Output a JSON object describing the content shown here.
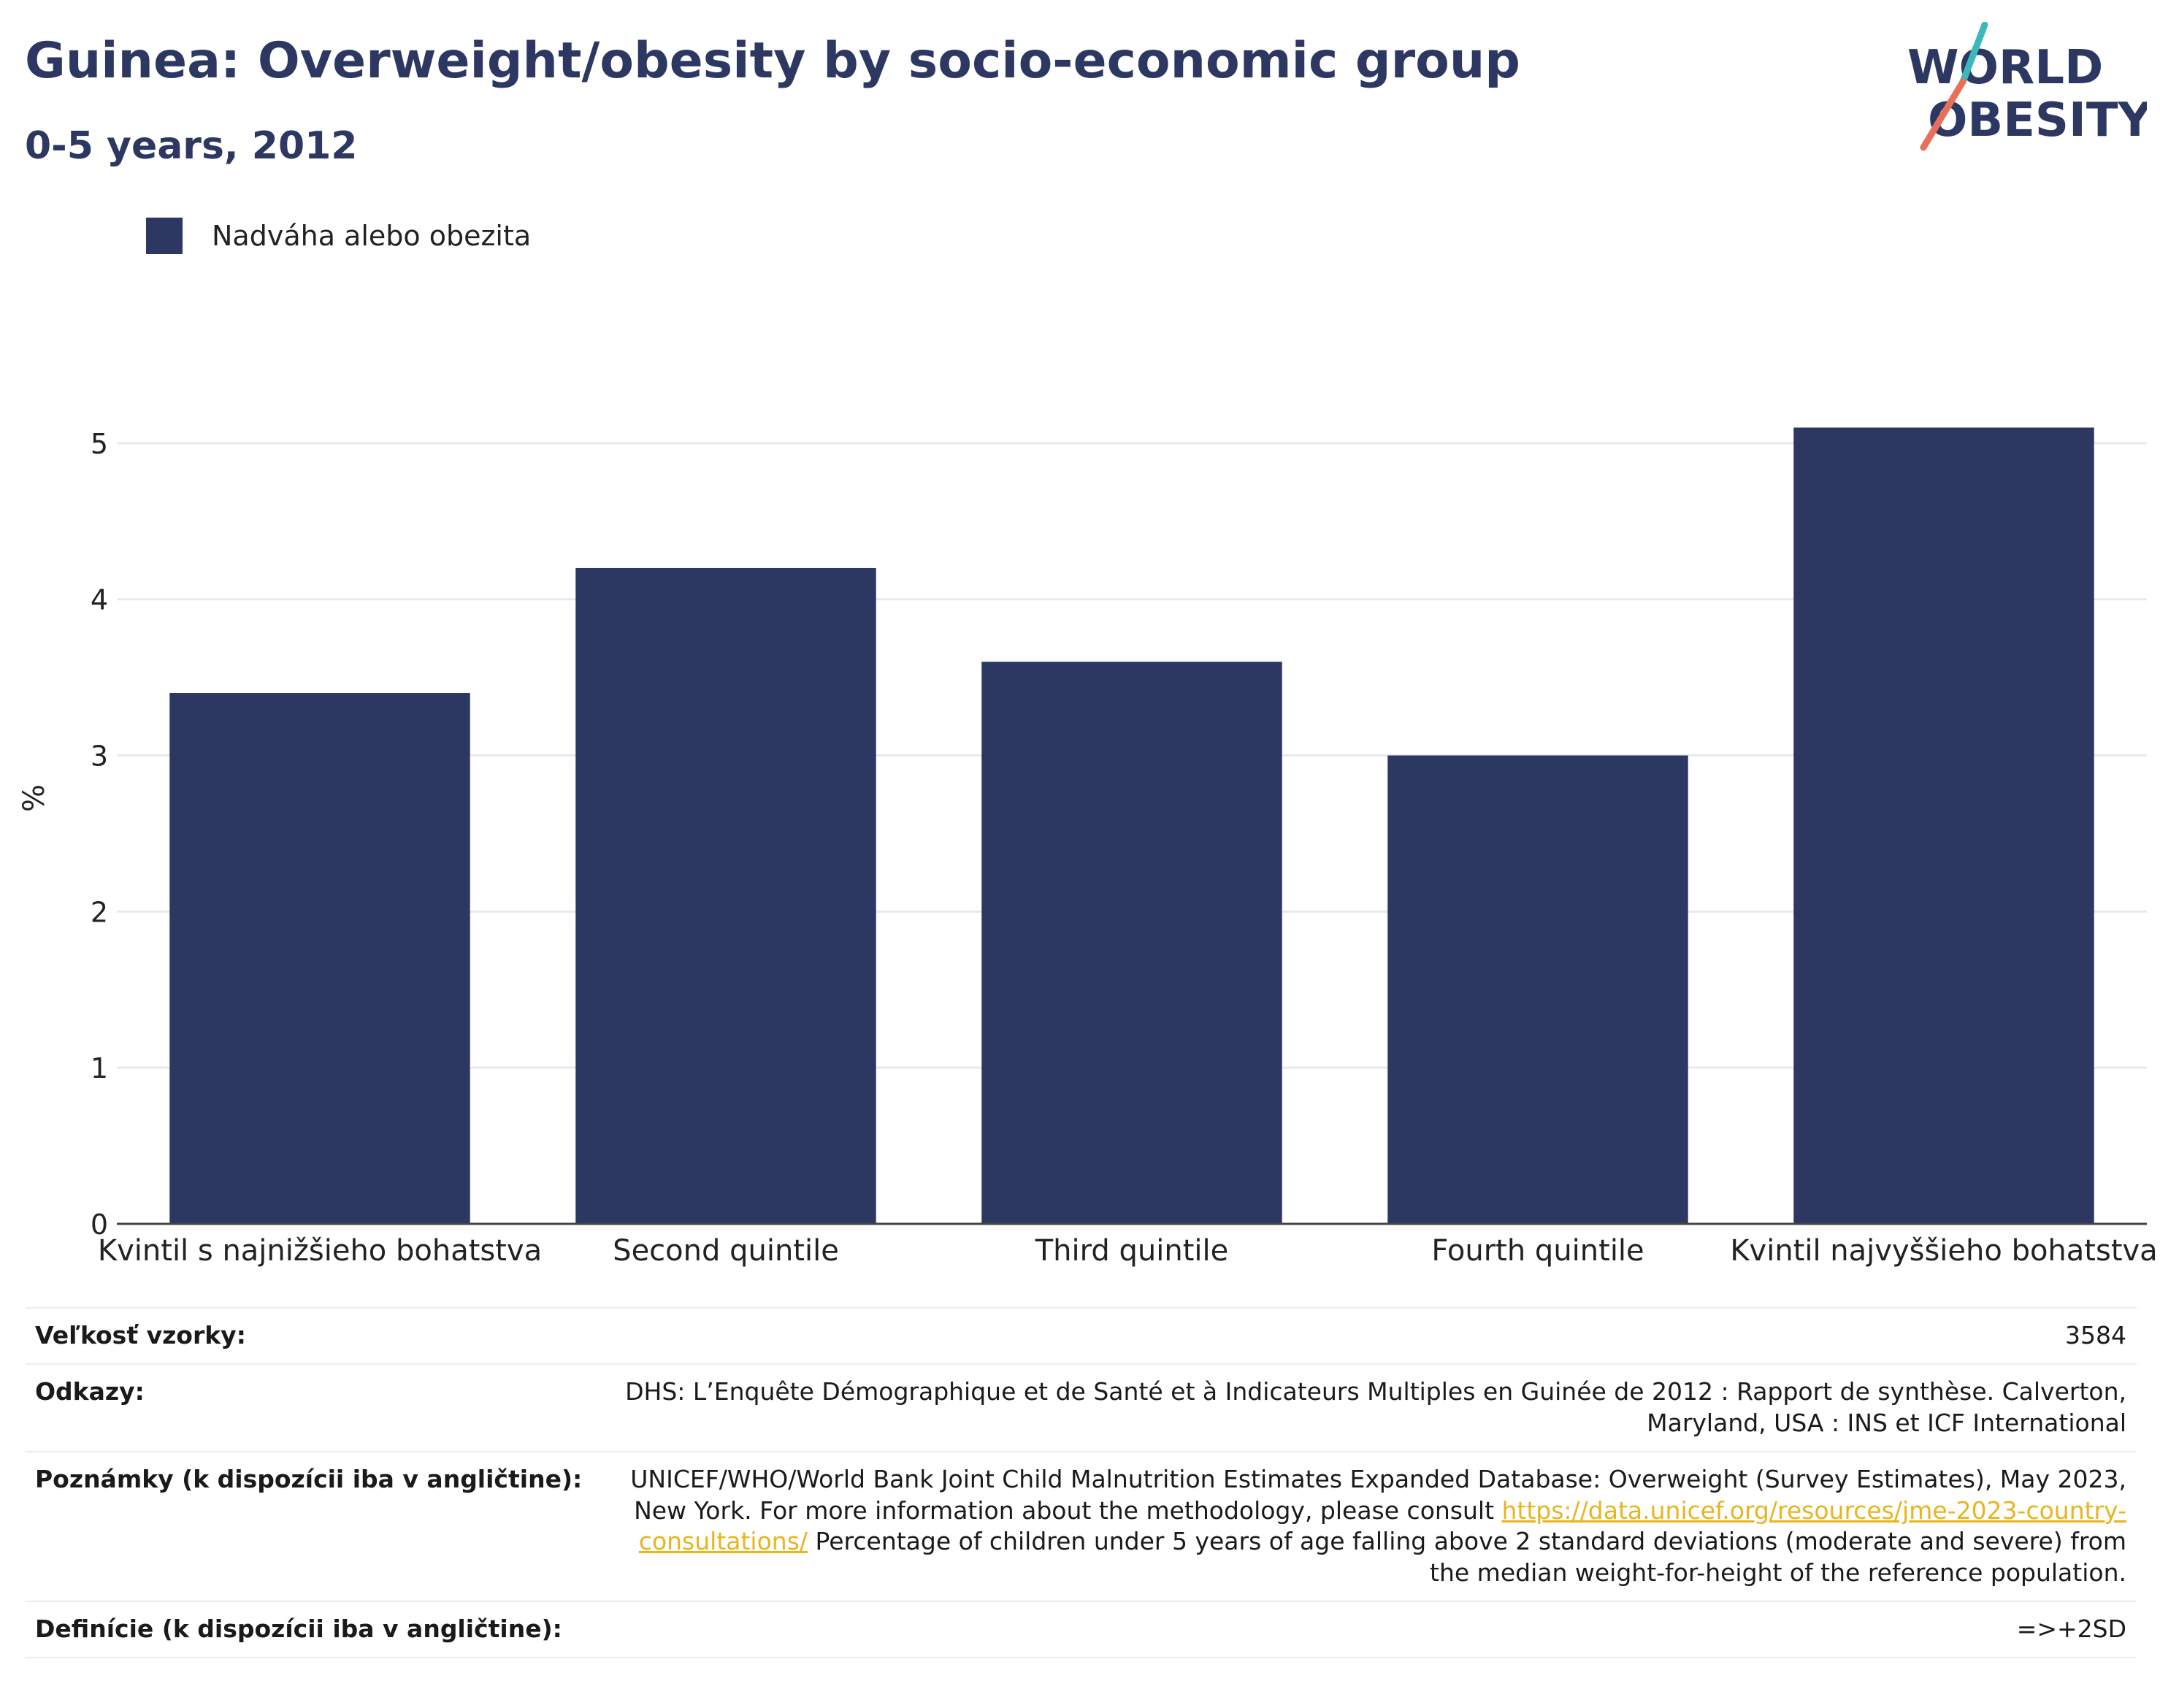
{
  "header": {
    "title": "Guinea: Overweight/obesity by socio-economic group",
    "subtitle": "0-5 years, 2012"
  },
  "logo": {
    "line1": "WORLD",
    "line2": "OBESITY",
    "colors": {
      "text": "#2c3862",
      "slash_top": "#3db8b8",
      "slash_bottom": "#e8705a"
    }
  },
  "colors": {
    "bar": "#2c3862",
    "grid": "#e6e9ee",
    "axis": "#444444"
  },
  "chart_data": {
    "type": "bar",
    "categories": [
      "Kvintil s najnižšieho bohatstva",
      "Second quintile",
      "Third quintile",
      "Fourth quintile",
      "Kvintil najvyššieho bohatstva"
    ],
    "series": [
      {
        "name": "Nadváha alebo obezita",
        "values": [
          3.4,
          4.2,
          3.6,
          3.0,
          5.1
        ]
      }
    ],
    "title": "Guinea: Overweight/obesity by socio-economic group",
    "subtitle": "0-5 years, 2012",
    "xlabel": "",
    "ylabel": "%",
    "ylim": [
      0,
      5.5
    ],
    "yticks": [
      0,
      1,
      2,
      3,
      4,
      5
    ],
    "grid": true,
    "legend": "top-left"
  },
  "meta": {
    "sample": {
      "label": "Veľkosť vzorky:",
      "value": "3584"
    },
    "references": {
      "label": "Odkazy:",
      "value": "DHS: L’Enquête Démographique et de Santé et à Indicateurs Multiples en Guinée de 2012 : Rapport de synthèse. Calverton, Maryland, USA : INS et ICF International"
    },
    "notes": {
      "label": "Poznámky (k dispozícii iba v angličtine):",
      "before": "UNICEF/WHO/World Bank Joint Child Malnutrition Estimates Expanded Database: Overweight (Survey Estimates), May 2023, New York. For more information about the methodology, please consult ",
      "link": "https://data.unicef.org/resources/jme-2023-country-consultations/",
      "after": " Percentage of children under 5 years of age falling above 2 standard deviations (moderate and severe) from the median weight-for-height of the reference population."
    },
    "definitions": {
      "label": "Definície (k dispozícii iba v angličtine):",
      "value": "=>+2SD"
    }
  }
}
